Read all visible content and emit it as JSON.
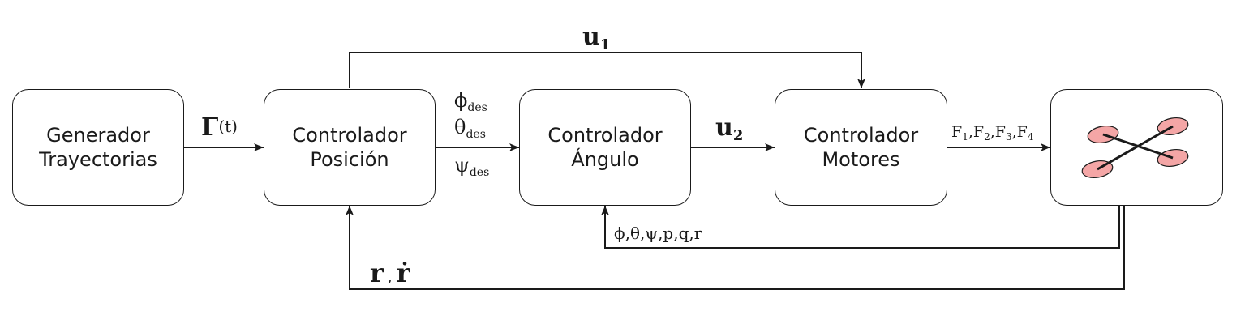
{
  "blocks": {
    "generator": {
      "line1": "Generador",
      "line2": "Trayectorias"
    },
    "position": {
      "line1": "Controlador",
      "line2": "Posición"
    },
    "angle": {
      "line1": "Controlador",
      "line2": "Ángulo"
    },
    "motors": {
      "line1": "Controlador",
      "line2": "Motores"
    }
  },
  "signals": {
    "gamma": {
      "symbol": "Γ",
      "arg": "(t)"
    },
    "u1": {
      "base": "u",
      "sub": "1"
    },
    "u2": {
      "base": "u",
      "sub": "2"
    },
    "phi_des": {
      "base": "ϕ",
      "sub": "des"
    },
    "theta_des": {
      "base": "θ",
      "sub": "des"
    },
    "psi_des": {
      "base": "ψ",
      "sub": "des"
    },
    "forces": {
      "f1": "F",
      "f1_sub": "1",
      "sep1": ",",
      "f2": "F",
      "f2_sub": "2",
      "sep2": ",",
      "f3": "F",
      "f3_sub": "3",
      "sep3": ",",
      "f4": "F",
      "f4_sub": "4"
    },
    "angle_feedback": "ϕ,θ,ψ,p,q,r",
    "position_feedback": {
      "r": "r",
      "sep": ",",
      "rdot": "ṙ"
    }
  },
  "colors": {
    "line": "#1a1a1a",
    "rotor_fill": "#f4a6a6"
  }
}
